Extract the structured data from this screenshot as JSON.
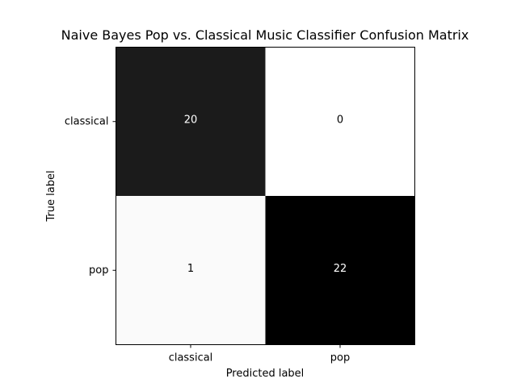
{
  "chart_data": {
    "type": "heatmap",
    "title": "Naive Bayes Pop vs. Classical Music Classifier Confusion Matrix",
    "xlabel": "Predicted label",
    "ylabel": "True label",
    "x_categories": [
      "classical",
      "pop"
    ],
    "y_categories": [
      "classical",
      "pop"
    ],
    "values": [
      [
        20,
        0
      ],
      [
        1,
        22
      ]
    ],
    "colormap": "Greys",
    "colorbar": false,
    "grid": false
  }
}
